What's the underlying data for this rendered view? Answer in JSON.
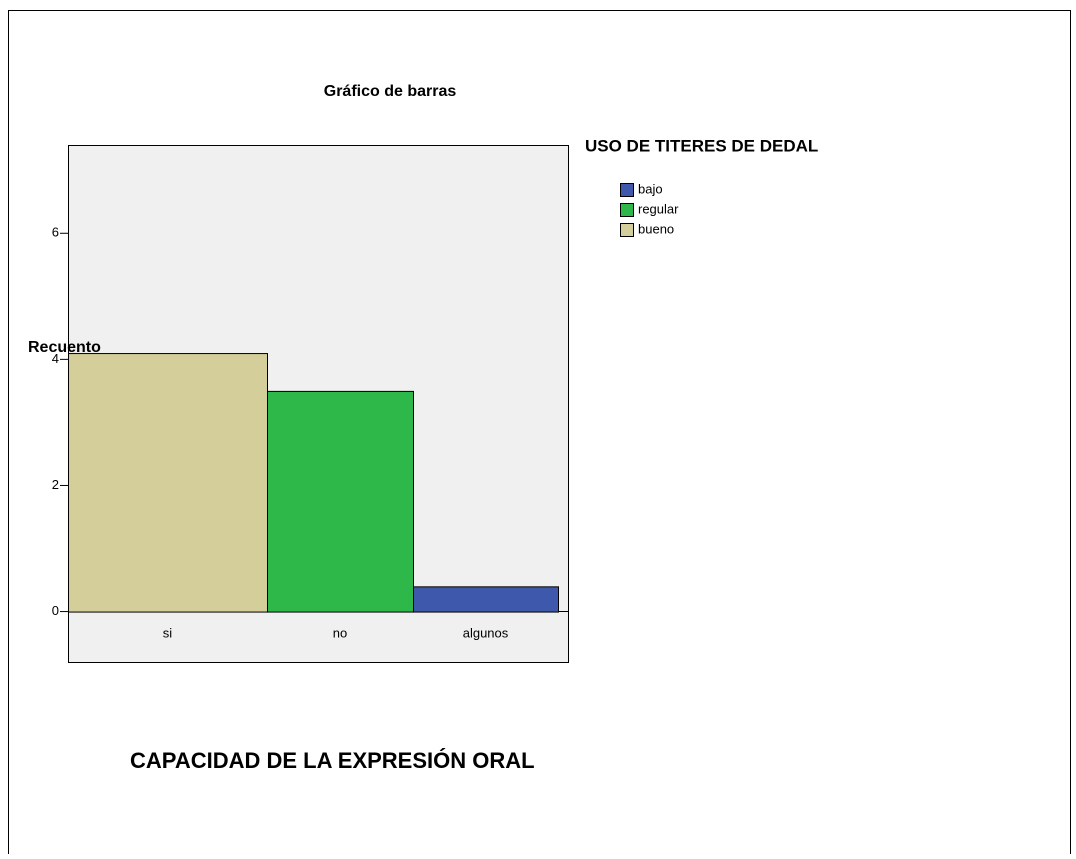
{
  "chart_data": {
    "type": "bar",
    "title": "Gráfico de barras",
    "y_label": "Recuento",
    "x_label": "CAPACIDAD DE LA EXPRESIÓN ORAL",
    "legend_title": "USO DE TITERES DE DEDAL",
    "categories": [
      "si",
      "no",
      "algunos"
    ],
    "series": [
      {
        "name": "bajo",
        "color": "#3e58ac",
        "values": [
          null,
          null,
          0.4
        ]
      },
      {
        "name": "regular",
        "color": "#2fb84a",
        "values": [
          null,
          3.5,
          null
        ]
      },
      {
        "name": "bueno",
        "color": "#d3ce9a",
        "values": [
          4.1,
          null,
          null
        ]
      }
    ],
    "ylim": [
      -0.8,
      7.4
    ],
    "yticks": [
      0,
      2,
      4,
      6
    ]
  }
}
